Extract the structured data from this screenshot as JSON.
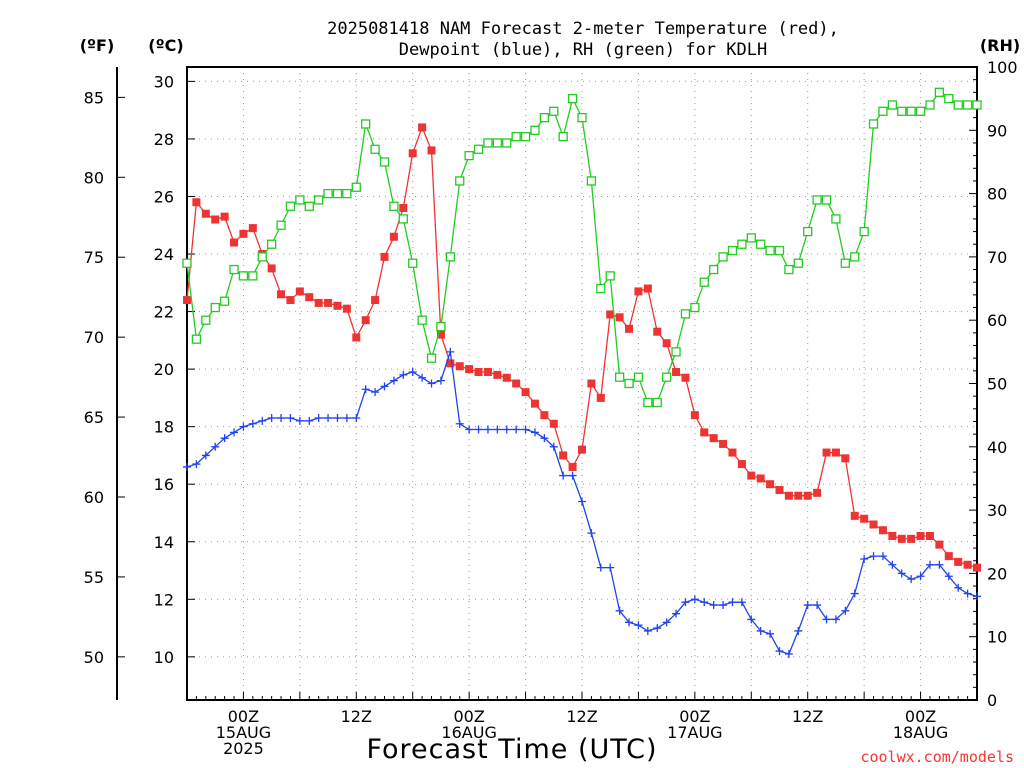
{
  "chart_data": {
    "type": "line",
    "title_lines": [
      "2025081418 NAM Forecast 2-meter Temperature (red),",
      "Dewpoint (blue), RH (green) for KDLH"
    ],
    "xlabel": "Forecast Time (UTC)",
    "left_unit_f": "(ºF)",
    "left_unit_c": "(ºC)",
    "right_unit": "(RH)",
    "credit": "coolwx.com/models",
    "credit_color": "#ff3333",
    "y_celsius_range": [
      8.5,
      30.5
    ],
    "y_celsius_ticks": [
      10,
      12,
      14,
      16,
      18,
      20,
      22,
      24,
      26,
      28,
      30
    ],
    "y_fahrenheit_ticks": [
      50,
      55,
      60,
      65,
      70,
      75,
      80,
      85
    ],
    "y_rh_range": [
      0,
      100
    ],
    "y_rh_ticks": [
      0,
      10,
      20,
      30,
      40,
      50,
      60,
      70,
      80,
      90,
      100
    ],
    "x_hours_range": [
      18,
      102
    ],
    "x_ticks": [
      {
        "hour": 24,
        "lines": [
          "00Z",
          "15AUG",
          "2025"
        ]
      },
      {
        "hour": 36,
        "lines": [
          "12Z"
        ]
      },
      {
        "hour": 48,
        "lines": [
          "00Z",
          "16AUG"
        ]
      },
      {
        "hour": 60,
        "lines": [
          "12Z"
        ]
      },
      {
        "hour": 72,
        "lines": [
          "00Z",
          "17AUG"
        ]
      },
      {
        "hour": 84,
        "lines": [
          "12Z"
        ]
      },
      {
        "hour": 96,
        "lines": [
          "00Z",
          "18AUG"
        ]
      }
    ],
    "grid": true,
    "hours": [
      18,
      19,
      20,
      21,
      22,
      23,
      24,
      25,
      26,
      27,
      28,
      29,
      30,
      31,
      32,
      33,
      34,
      35,
      36,
      37,
      38,
      39,
      40,
      41,
      42,
      43,
      44,
      45,
      46,
      47,
      48,
      49,
      50,
      51,
      52,
      53,
      54,
      55,
      56,
      57,
      58,
      59,
      60,
      61,
      62,
      63,
      64,
      65,
      66,
      67,
      68,
      69,
      70,
      71,
      72,
      73,
      74,
      75,
      76,
      77,
      78,
      79,
      80,
      81,
      82,
      83,
      84,
      85,
      86,
      87,
      88,
      89,
      90,
      91,
      92,
      93,
      94,
      95,
      96,
      97,
      98,
      99,
      100,
      101,
      102
    ],
    "series": [
      {
        "name": "2-meter Temperature",
        "color": "#ee3333",
        "marker": "filled-square",
        "axis": "celsius",
        "values": [
          22.4,
          25.8,
          25.4,
          25.2,
          25.3,
          24.4,
          24.7,
          24.9,
          24.0,
          23.5,
          22.6,
          22.4,
          22.7,
          22.5,
          22.3,
          22.3,
          22.2,
          22.1,
          21.1,
          21.7,
          22.4,
          23.9,
          24.6,
          25.6,
          27.5,
          28.4,
          27.6,
          21.2,
          20.2,
          20.1,
          20.0,
          19.9,
          19.9,
          19.8,
          19.7,
          19.5,
          19.2,
          18.8,
          18.4,
          18.1,
          17.0,
          16.6,
          17.2,
          19.5,
          19.0,
          21.9,
          21.8,
          21.4,
          22.7,
          22.8,
          21.3,
          20.9,
          19.9,
          19.7,
          18.4,
          17.8,
          17.6,
          17.4,
          17.1,
          16.7,
          16.3,
          16.2,
          16.0,
          15.8,
          15.6,
          15.6,
          15.6,
          15.7,
          17.1,
          17.1,
          16.9,
          14.9,
          14.8,
          14.6,
          14.4,
          14.2,
          14.1,
          14.1,
          14.2,
          14.2,
          13.9,
          13.5,
          13.3,
          13.2,
          13.1
        ]
      },
      {
        "name": "Dewpoint",
        "color": "#2244ee",
        "marker": "plus",
        "axis": "celsius",
        "values": [
          16.6,
          16.7,
          17.0,
          17.3,
          17.6,
          17.8,
          18.0,
          18.1,
          18.2,
          18.3,
          18.3,
          18.3,
          18.2,
          18.2,
          18.3,
          18.3,
          18.3,
          18.3,
          18.3,
          19.3,
          19.2,
          19.4,
          19.6,
          19.8,
          19.9,
          19.7,
          19.5,
          19.6,
          20.6,
          18.1,
          17.9,
          17.9,
          17.9,
          17.9,
          17.9,
          17.9,
          17.9,
          17.8,
          17.6,
          17.3,
          16.3,
          16.3,
          15.4,
          14.3,
          13.1,
          13.1,
          11.6,
          11.2,
          11.1,
          10.9,
          11.0,
          11.2,
          11.5,
          11.9,
          12.0,
          11.9,
          11.8,
          11.8,
          11.9,
          11.9,
          11.3,
          10.9,
          10.8,
          10.2,
          10.1,
          10.9,
          11.8,
          11.8,
          11.3,
          11.3,
          11.6,
          12.2,
          13.4,
          13.5,
          13.5,
          13.2,
          12.9,
          12.7,
          12.8,
          13.2,
          13.2,
          12.8,
          12.4,
          12.2,
          12.1
        ]
      },
      {
        "name": "RH",
        "color": "#22cc22",
        "marker": "open-square",
        "axis": "rh",
        "values": [
          69,
          57,
          60,
          62,
          63,
          68,
          67,
          67,
          70,
          72,
          75,
          78,
          79,
          78,
          79,
          80,
          80,
          80,
          81,
          91,
          87,
          85,
          78,
          76,
          69,
          60,
          54,
          59,
          70,
          82,
          86,
          87,
          88,
          88,
          88,
          89,
          89,
          90,
          92,
          93,
          89,
          95,
          92,
          82,
          65,
          67,
          51,
          50,
          51,
          47,
          47,
          51,
          55,
          61,
          62,
          66,
          68,
          70,
          71,
          72,
          73,
          72,
          71,
          71,
          68,
          69,
          74,
          79,
          79,
          76,
          69,
          70,
          74,
          91,
          93,
          94,
          93,
          93,
          93,
          94,
          96,
          95,
          94,
          94,
          94
        ]
      }
    ]
  }
}
